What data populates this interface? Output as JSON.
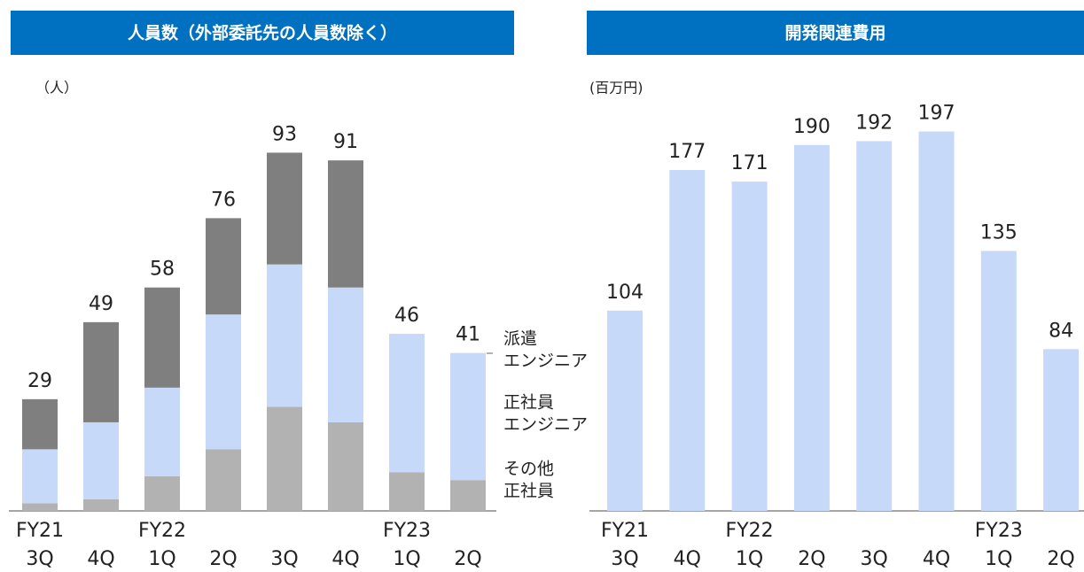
{
  "chart_data": [
    {
      "type": "stacked_bar",
      "title": "人員数（外部委託先の人員数除く）",
      "unit": "（人）",
      "categories": [
        [
          "FY21",
          "3Q"
        ],
        [
          "4Q"
        ],
        [
          "FY22",
          "1Q"
        ],
        [
          "2Q"
        ],
        [
          "3Q"
        ],
        [
          "4Q"
        ],
        [
          "FY23",
          "1Q"
        ],
        [
          "2Q"
        ]
      ],
      "series": [
        {
          "name": [
            "その他",
            "正社員"
          ],
          "color": "#b2b2b2",
          "values": [
            2,
            3,
            9,
            16,
            27,
            23,
            10,
            8
          ]
        },
        {
          "name": [
            "正社員",
            "エンジニア"
          ],
          "color": "#c6d9f8",
          "values": [
            14,
            20,
            23,
            35,
            37,
            35,
            36,
            33
          ]
        },
        {
          "name": [
            "派遣",
            "エンジニア"
          ],
          "color": "#7f7f7f",
          "values": [
            13,
            26,
            26,
            25,
            29,
            33,
            0,
            0
          ]
        }
      ],
      "totals": [
        29,
        49,
        58,
        76,
        93,
        91,
        46,
        41
      ],
      "ylim": [
        0,
        100
      ]
    },
    {
      "type": "bar",
      "title": "開発関連費用",
      "unit": "(百万円)",
      "categories": [
        [
          "FY21",
          "3Q"
        ],
        [
          "4Q"
        ],
        [
          "FY22",
          "1Q"
        ],
        [
          "2Q"
        ],
        [
          "3Q"
        ],
        [
          "4Q"
        ],
        [
          "FY23",
          "1Q"
        ],
        [
          "2Q"
        ]
      ],
      "values": [
        104,
        177,
        171,
        190,
        192,
        197,
        135,
        84
      ],
      "color": "#c6d9f8",
      "ylim": [
        0,
        200
      ]
    }
  ]
}
